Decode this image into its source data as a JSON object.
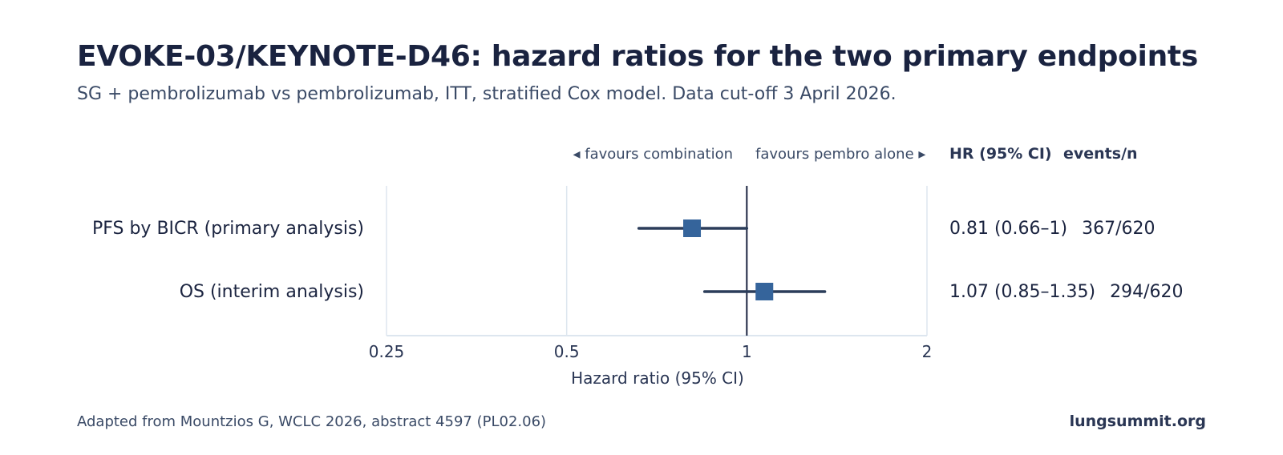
{
  "header": {
    "title": "EVOKE-03/KEYNOTE-D46: hazard ratios for the two primary endpoints",
    "subtitle": "SG + pembrolizumab vs pembrolizumab, ITT, stratified Cox model. Data cut-off 3 April 2026."
  },
  "footer": {
    "source": "Adapted from Mountzios G, WCLC 2026, abstract 4597 (PL02.06)",
    "brand": "lungsummit.org"
  },
  "colors": {
    "marker": "#35649b",
    "ci_line": "#2b3d5a",
    "reference_line": "#1a2340",
    "gridline": "#dde6ef",
    "axis_text": "#2a3654"
  },
  "chart_data": {
    "type": "forest",
    "scale": "log",
    "xlabel": "Hazard ratio (95% CI)",
    "xlim": [
      0.25,
      2
    ],
    "ticks": [
      0.25,
      0.5,
      1,
      2
    ],
    "tick_labels": [
      "0.25",
      "0.5",
      "1",
      "2"
    ],
    "reference_value": 1,
    "direction_left": "◂ favours combination",
    "direction_right": "favours pembro alone ▸",
    "column_headers": {
      "hr": "HR (95% CI)",
      "events": "events/n"
    },
    "rows": [
      {
        "label": "PFS by BICR (primary analysis)",
        "hr": 0.81,
        "ci_low": 0.66,
        "ci_high": 1,
        "hr_text": "0.81 (0.66–1)",
        "events_text": "367/620"
      },
      {
        "label": "OS (interim analysis)",
        "hr": 1.07,
        "ci_low": 0.85,
        "ci_high": 1.35,
        "hr_text": "1.07 (0.85–1.35)",
        "events_text": "294/620"
      }
    ]
  }
}
